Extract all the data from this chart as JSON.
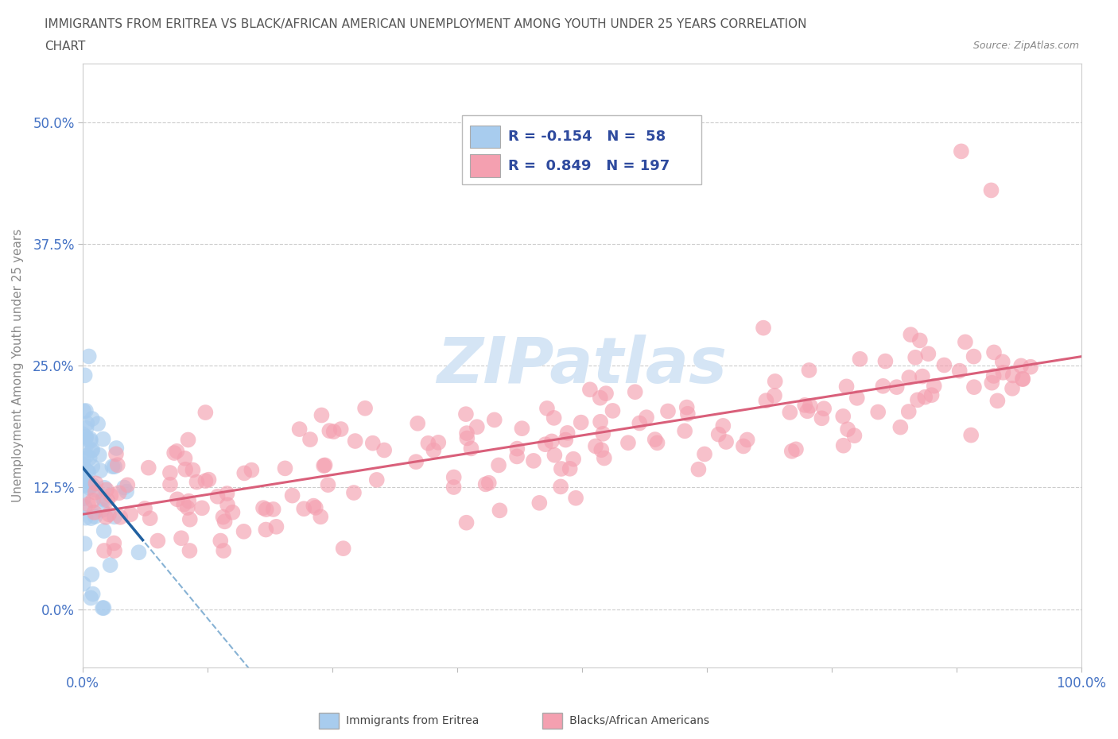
{
  "title_line1": "IMMIGRANTS FROM ERITREA VS BLACK/AFRICAN AMERICAN UNEMPLOYMENT AMONG YOUTH UNDER 25 YEARS CORRELATION",
  "title_line2": "CHART",
  "source_text": "Source: ZipAtlas.com",
  "ylabel": "Unemployment Among Youth under 25 years",
  "xlim": [
    0.0,
    1.0
  ],
  "ylim": [
    -0.06,
    0.56
  ],
  "yticks": [
    0.0,
    0.125,
    0.25,
    0.375,
    0.5
  ],
  "ytick_labels": [
    "0.0%",
    "12.5%",
    "25.0%",
    "37.5%",
    "50.0%"
  ],
  "xticks": [
    0.0,
    0.125,
    0.25,
    0.375,
    0.5,
    0.625,
    0.75,
    0.875,
    1.0
  ],
  "blue_R": -0.154,
  "blue_N": 58,
  "pink_R": 0.849,
  "pink_N": 197,
  "blue_scatter_color": "#A8CCEE",
  "pink_scatter_color": "#F4A0B0",
  "blue_line_color": "#7AAAD0",
  "pink_line_color": "#D95F7A",
  "legend_text_color": "#2E4A9E",
  "watermark_color": "#D5E5F5",
  "background_color": "#FFFFFF",
  "grid_color": "#CCCCCC",
  "title_color": "#555555",
  "axis_label_color": "#888888",
  "tick_color": "#4472C4"
}
